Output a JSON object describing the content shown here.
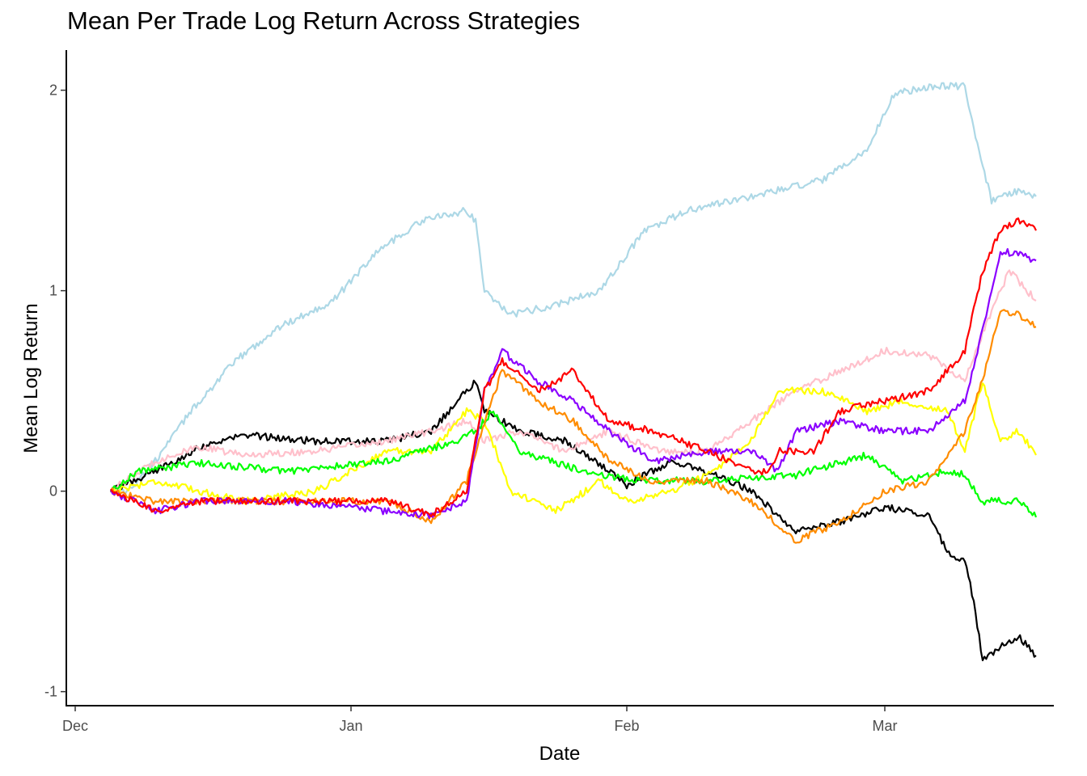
{
  "chart_data": {
    "type": "line",
    "title": "Mean Per Trade Log Return Across Strategies",
    "xlabel": "Date",
    "ylabel": "Mean Log Return",
    "x_ticks": [
      "Dec",
      "Jan",
      "Feb",
      "Mar"
    ],
    "x_tick_dates": [
      "2023-12-01",
      "2024-01-01",
      "2024-02-01",
      "2024-03-01"
    ],
    "xlim": [
      "2023-11-30",
      "2024-03-20"
    ],
    "y_ticks": [
      "-1",
      "0",
      "1",
      "2"
    ],
    "ylim": [
      -1.07,
      2.2
    ],
    "grid": false,
    "legend": "none",
    "series": [
      {
        "color": "#ADD8E6",
        "points": [
          [
            "2023-12-05",
            0.0
          ],
          [
            "2023-12-07",
            0.0
          ],
          [
            "2023-12-10",
            0.15
          ],
          [
            "2023-12-14",
            0.4
          ],
          [
            "2023-12-19",
            0.65
          ],
          [
            "2023-12-24",
            0.82
          ],
          [
            "2023-12-30",
            0.95
          ],
          [
            "2024-01-04",
            1.2
          ],
          [
            "2024-01-09",
            1.35
          ],
          [
            "2024-01-14",
            1.4
          ],
          [
            "2024-01-15",
            1.35
          ],
          [
            "2024-01-16",
            1.0
          ],
          [
            "2024-01-19",
            0.88
          ],
          [
            "2024-01-24",
            0.93
          ],
          [
            "2024-01-29",
            1.0
          ],
          [
            "2024-02-03",
            1.3
          ],
          [
            "2024-02-08",
            1.4
          ],
          [
            "2024-02-13",
            1.45
          ],
          [
            "2024-02-18",
            1.5
          ],
          [
            "2024-02-23",
            1.55
          ],
          [
            "2024-02-28",
            1.7
          ],
          [
            "2024-03-02",
            1.98
          ],
          [
            "2024-03-06",
            2.02
          ],
          [
            "2024-03-10",
            2.02
          ],
          [
            "2024-03-11",
            1.8
          ],
          [
            "2024-03-13",
            1.45
          ],
          [
            "2024-03-16",
            1.5
          ],
          [
            "2024-03-18",
            1.47
          ]
        ]
      },
      {
        "color": "#000000",
        "points": [
          [
            "2023-12-05",
            0.0
          ],
          [
            "2023-12-10",
            0.1
          ],
          [
            "2023-12-15",
            0.22
          ],
          [
            "2023-12-20",
            0.28
          ],
          [
            "2023-12-28",
            0.25
          ],
          [
            "2024-01-05",
            0.25
          ],
          [
            "2024-01-10",
            0.3
          ],
          [
            "2024-01-14",
            0.5
          ],
          [
            "2024-01-15",
            0.55
          ],
          [
            "2024-01-16",
            0.4
          ],
          [
            "2024-01-20",
            0.3
          ],
          [
            "2024-01-25",
            0.25
          ],
          [
            "2024-01-30",
            0.1
          ],
          [
            "2024-02-01",
            0.03
          ],
          [
            "2024-02-06",
            0.15
          ],
          [
            "2024-02-11",
            0.08
          ],
          [
            "2024-02-15",
            0.0
          ],
          [
            "2024-02-20",
            -0.2
          ],
          [
            "2024-02-25",
            -0.15
          ],
          [
            "2024-03-01",
            -0.08
          ],
          [
            "2024-03-06",
            -0.12
          ],
          [
            "2024-03-08",
            -0.3
          ],
          [
            "2024-03-10",
            -0.35
          ],
          [
            "2024-03-11",
            -0.55
          ],
          [
            "2024-03-12",
            -0.85
          ],
          [
            "2024-03-14",
            -0.78
          ],
          [
            "2024-03-16",
            -0.72
          ],
          [
            "2024-03-18",
            -0.82
          ]
        ]
      },
      {
        "color": "#FFC0CB",
        "points": [
          [
            "2023-12-05",
            0.0
          ],
          [
            "2023-12-10",
            0.15
          ],
          [
            "2023-12-15",
            0.22
          ],
          [
            "2023-12-20",
            0.18
          ],
          [
            "2023-12-28",
            0.2
          ],
          [
            "2024-01-05",
            0.25
          ],
          [
            "2024-01-10",
            0.3
          ],
          [
            "2024-01-14",
            0.35
          ],
          [
            "2024-01-16",
            0.25
          ],
          [
            "2024-01-20",
            0.3
          ],
          [
            "2024-01-25",
            0.2
          ],
          [
            "2024-01-30",
            0.3
          ],
          [
            "2024-02-05",
            0.2
          ],
          [
            "2024-02-10",
            0.2
          ],
          [
            "2024-02-15",
            0.35
          ],
          [
            "2024-02-20",
            0.5
          ],
          [
            "2024-02-25",
            0.6
          ],
          [
            "2024-03-01",
            0.7
          ],
          [
            "2024-03-06",
            0.68
          ],
          [
            "2024-03-10",
            0.55
          ],
          [
            "2024-03-13",
            0.9
          ],
          [
            "2024-03-15",
            1.1
          ],
          [
            "2024-03-18",
            0.95
          ]
        ]
      },
      {
        "color": "#FFFF00",
        "points": [
          [
            "2023-12-05",
            0.0
          ],
          [
            "2023-12-10",
            0.05
          ],
          [
            "2023-12-15",
            0.0
          ],
          [
            "2023-12-20",
            -0.05
          ],
          [
            "2023-12-28",
            0.0
          ],
          [
            "2024-01-05",
            0.2
          ],
          [
            "2024-01-10",
            0.2
          ],
          [
            "2024-01-14",
            0.4
          ],
          [
            "2024-01-16",
            0.35
          ],
          [
            "2024-01-19",
            0.0
          ],
          [
            "2024-01-24",
            -0.1
          ],
          [
            "2024-01-29",
            0.05
          ],
          [
            "2024-02-01",
            -0.05
          ],
          [
            "2024-02-06",
            0.0
          ],
          [
            "2024-02-11",
            0.1
          ],
          [
            "2024-02-15",
            0.25
          ],
          [
            "2024-02-18",
            0.5
          ],
          [
            "2024-02-23",
            0.5
          ],
          [
            "2024-02-28",
            0.4
          ],
          [
            "2024-03-03",
            0.45
          ],
          [
            "2024-03-08",
            0.4
          ],
          [
            "2024-03-10",
            0.2
          ],
          [
            "2024-03-12",
            0.55
          ],
          [
            "2024-03-14",
            0.25
          ],
          [
            "2024-03-16",
            0.3
          ],
          [
            "2024-03-18",
            0.18
          ]
        ]
      },
      {
        "color": "#00FF00",
        "points": [
          [
            "2023-12-05",
            0.0
          ],
          [
            "2023-12-08",
            0.1
          ],
          [
            "2023-12-15",
            0.14
          ],
          [
            "2023-12-25",
            0.1
          ],
          [
            "2024-01-05",
            0.15
          ],
          [
            "2024-01-13",
            0.25
          ],
          [
            "2024-01-15",
            0.3
          ],
          [
            "2024-01-17",
            0.4
          ],
          [
            "2024-01-20",
            0.2
          ],
          [
            "2024-01-27",
            0.1
          ],
          [
            "2024-02-01",
            0.06
          ],
          [
            "2024-02-10",
            0.05
          ],
          [
            "2024-02-20",
            0.08
          ],
          [
            "2024-02-28",
            0.18
          ],
          [
            "2024-03-03",
            0.05
          ],
          [
            "2024-03-08",
            0.1
          ],
          [
            "2024-03-10",
            0.08
          ],
          [
            "2024-03-12",
            -0.05
          ],
          [
            "2024-03-16",
            -0.05
          ],
          [
            "2024-03-18",
            -0.13
          ]
        ]
      },
      {
        "color": "#FF8C00",
        "points": [
          [
            "2023-12-05",
            0.0
          ],
          [
            "2023-12-10",
            -0.05
          ],
          [
            "2023-12-15",
            -0.05
          ],
          [
            "2023-12-25",
            -0.05
          ],
          [
            "2024-01-05",
            -0.05
          ],
          [
            "2024-01-10",
            -0.15
          ],
          [
            "2024-01-14",
            0.05
          ],
          [
            "2024-01-16",
            0.35
          ],
          [
            "2024-01-18",
            0.6
          ],
          [
            "2024-01-22",
            0.45
          ],
          [
            "2024-01-26",
            0.35
          ],
          [
            "2024-01-30",
            0.15
          ],
          [
            "2024-02-04",
            0.05
          ],
          [
            "2024-02-10",
            0.05
          ],
          [
            "2024-02-15",
            -0.05
          ],
          [
            "2024-02-20",
            -0.25
          ],
          [
            "2024-02-25",
            -0.15
          ],
          [
            "2024-03-01",
            0.0
          ],
          [
            "2024-03-06",
            0.05
          ],
          [
            "2024-03-10",
            0.3
          ],
          [
            "2024-03-12",
            0.55
          ],
          [
            "2024-03-14",
            0.9
          ],
          [
            "2024-03-16",
            0.88
          ],
          [
            "2024-03-18",
            0.82
          ]
        ]
      },
      {
        "color": "#8B00FF",
        "points": [
          [
            "2023-12-05",
            0.0
          ],
          [
            "2023-12-10",
            -0.1
          ],
          [
            "2023-12-15",
            -0.05
          ],
          [
            "2023-12-25",
            -0.05
          ],
          [
            "2024-01-05",
            -0.1
          ],
          [
            "2024-01-10",
            -0.12
          ],
          [
            "2024-01-14",
            -0.05
          ],
          [
            "2024-01-16",
            0.5
          ],
          [
            "2024-01-18",
            0.7
          ],
          [
            "2024-01-22",
            0.55
          ],
          [
            "2024-01-26",
            0.45
          ],
          [
            "2024-01-30",
            0.3
          ],
          [
            "2024-02-04",
            0.15
          ],
          [
            "2024-02-10",
            0.2
          ],
          [
            "2024-02-15",
            0.2
          ],
          [
            "2024-02-18",
            0.1
          ],
          [
            "2024-02-20",
            0.3
          ],
          [
            "2024-02-25",
            0.35
          ],
          [
            "2024-03-01",
            0.3
          ],
          [
            "2024-03-06",
            0.3
          ],
          [
            "2024-03-10",
            0.45
          ],
          [
            "2024-03-12",
            0.8
          ],
          [
            "2024-03-14",
            1.2
          ],
          [
            "2024-03-16",
            1.18
          ],
          [
            "2024-03-18",
            1.15
          ]
        ]
      },
      {
        "color": "#FF0000",
        "points": [
          [
            "2023-12-05",
            0.0
          ],
          [
            "2023-12-10",
            -0.1
          ],
          [
            "2023-12-15",
            -0.05
          ],
          [
            "2023-12-25",
            -0.05
          ],
          [
            "2024-01-05",
            -0.05
          ],
          [
            "2024-01-10",
            -0.12
          ],
          [
            "2024-01-14",
            0.0
          ],
          [
            "2024-01-16",
            0.5
          ],
          [
            "2024-01-18",
            0.65
          ],
          [
            "2024-01-22",
            0.5
          ],
          [
            "2024-01-26",
            0.6
          ],
          [
            "2024-01-30",
            0.35
          ],
          [
            "2024-02-04",
            0.3
          ],
          [
            "2024-02-10",
            0.2
          ],
          [
            "2024-02-15",
            0.1
          ],
          [
            "2024-02-17",
            0.1
          ],
          [
            "2024-02-18",
            0.2
          ],
          [
            "2024-02-22",
            0.2
          ],
          [
            "2024-02-25",
            0.4
          ],
          [
            "2024-03-01",
            0.45
          ],
          [
            "2024-03-06",
            0.5
          ],
          [
            "2024-03-10",
            0.7
          ],
          [
            "2024-03-12",
            1.1
          ],
          [
            "2024-03-14",
            1.3
          ],
          [
            "2024-03-16",
            1.35
          ],
          [
            "2024-03-18",
            1.3
          ]
        ]
      }
    ]
  }
}
